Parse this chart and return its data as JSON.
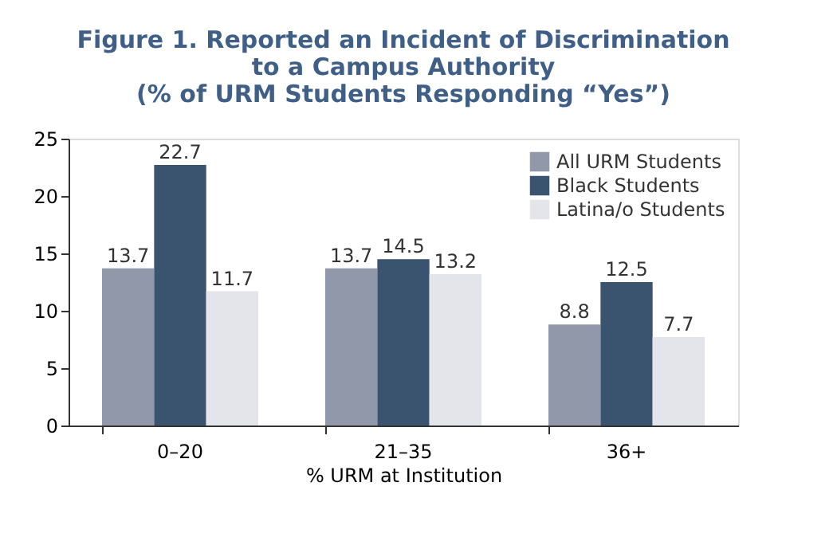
{
  "chart_data": {
    "type": "bar",
    "title": "Figure 1. Reported an Incident of Discrimination\nto a Campus Authority\n(% of URM Students Responding “Yes”)",
    "xlabel": "% URM at Institution",
    "categories": [
      "0–20",
      "21–35",
      "36+"
    ],
    "series": [
      {
        "name": "All URM Students",
        "color": "#9198aa",
        "values": [
          13.7,
          13.7,
          8.8
        ]
      },
      {
        "name": "Black Students",
        "color": "#3a5470",
        "values": [
          22.7,
          14.5,
          12.5
        ]
      },
      {
        "name": "Latina/o Students",
        "color": "#e4e5ea",
        "values": [
          11.7,
          13.2,
          7.7
        ]
      }
    ],
    "ylim": [
      0,
      25
    ],
    "yticks": [
      0,
      5,
      10,
      15,
      20,
      25
    ],
    "grid": false,
    "legend": "top right",
    "data_labels": true
  }
}
